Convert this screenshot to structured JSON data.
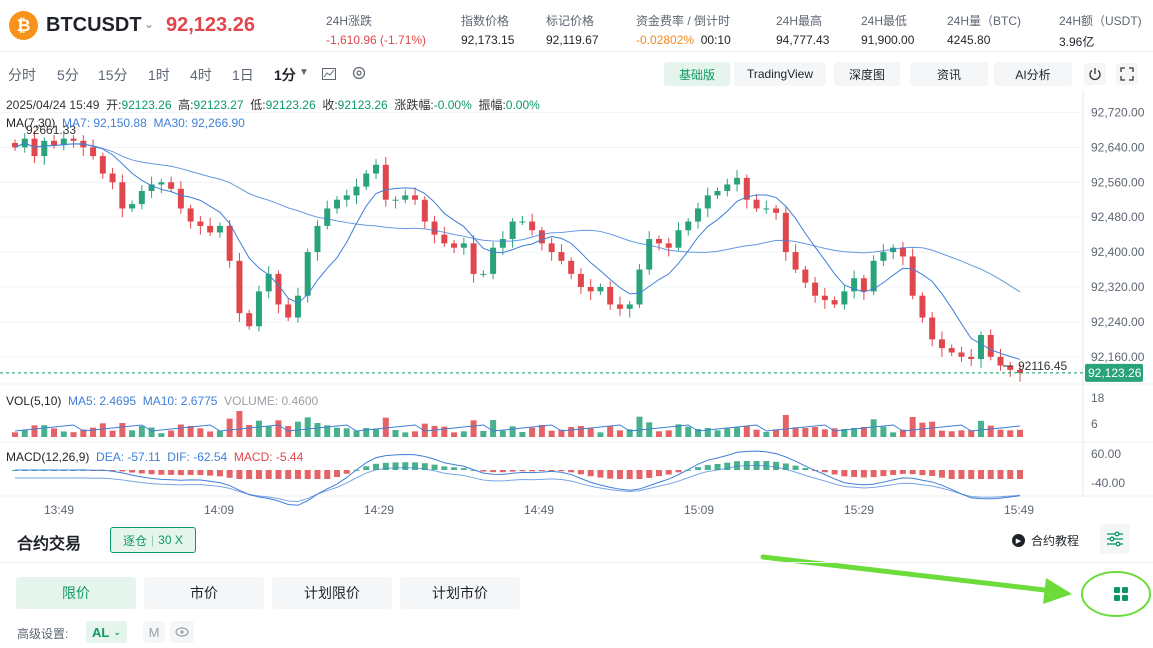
{
  "header": {
    "coin_glyph": "₿",
    "symbol": "BTCUSDT",
    "last_price": "92,123.26",
    "stats": [
      {
        "label": "24H涨跌",
        "value": "-1,610.96 (-1.71%)"
      },
      {
        "label": "指数价格",
        "value": "92,173.15"
      },
      {
        "label": "标记价格",
        "value": "92,119.67"
      },
      {
        "label": "资金费率 / 倒计时",
        "value": "-0.02802%",
        "value2": "00:10"
      },
      {
        "label": "24H最高",
        "value": "94,777.43"
      },
      {
        "label": "24H最低",
        "value": "91,900.00"
      },
      {
        "label": "24H量（BTC)",
        "value": "4245.80"
      },
      {
        "label": "24H额（USDT)",
        "value": "3.96亿"
      }
    ]
  },
  "toolbar": {
    "timeframes": [
      "分时",
      "5分",
      "15分",
      "1时",
      "4时",
      "1日",
      "1分"
    ],
    "active_timeframe": "1分",
    "views": [
      "基础版",
      "TradingView",
      "深度图",
      "资讯",
      "AI分析"
    ],
    "active_view": "基础版"
  },
  "chart_info": {
    "datetime": "2025/04/24 15:49",
    "open_label": "开:",
    "open": "92123.26",
    "high_label": "高:",
    "high": "92123.27",
    "low_label": "低:",
    "low": "92123.26",
    "close_label": "收:",
    "close": "92123.26",
    "chg_label": "涨跌幅:",
    "chg": "-0.00%",
    "amp_label": "振幅:",
    "amp": "0.00%",
    "ma_label": "MA(7,30)",
    "ma7": "MA7: 92,150.88",
    "ma30": "MA30: 92,266.90",
    "high_mark": "92661.33",
    "low_mark": "92116.45",
    "current_price_tag": "92,123.26",
    "vol_label": "VOL(5,10)",
    "ma5": "MA5: 2.4695",
    "ma10": "MA10: 2.6775",
    "volume": "VOLUME: 0.4600",
    "macd_label": "MACD(12,26,9)",
    "dea": "DEA: -57.11",
    "dif": "DIF: -62.54",
    "macd": "MACD: -5.44"
  },
  "chart_data": {
    "type": "candlestick",
    "y_ticks": [
      "92,720.00",
      "92,640.00",
      "92,560.00",
      "92,480.00",
      "92,400.00",
      "92,320.00",
      "92,240.00",
      "92,160.00"
    ],
    "y_range": [
      92100,
      92760
    ],
    "vol_ticks": [
      "18",
      "6"
    ],
    "macd_ticks": [
      "60.00",
      "-40.00"
    ],
    "x_ticks": [
      "13:49",
      "14:09",
      "14:29",
      "14:49",
      "15:09",
      "15:29",
      "15:49"
    ],
    "colors": {
      "up": "#2aa37a",
      "down": "#e0474c",
      "ma7": "#3f7fd8",
      "ma30": "#3f7fd8"
    },
    "close": [
      92640,
      92660,
      92620,
      92655,
      92645,
      92660,
      92655,
      92640,
      92620,
      92580,
      92560,
      92500,
      92510,
      92540,
      92555,
      92560,
      92545,
      92500,
      92470,
      92460,
      92445,
      92460,
      92380,
      92260,
      92230,
      92310,
      92350,
      92280,
      92250,
      92300,
      92400,
      92460,
      92500,
      92520,
      92530,
      92550,
      92580,
      92600,
      92520,
      92520,
      92530,
      92520,
      92470,
      92440,
      92420,
      92410,
      92420,
      92350,
      92350,
      92410,
      92430,
      92470,
      92470,
      92450,
      92420,
      92400,
      92380,
      92350,
      92320,
      92310,
      92320,
      92280,
      92270,
      92280,
      92360,
      92430,
      92420,
      92410,
      92450,
      92470,
      92500,
      92530,
      92540,
      92555,
      92570,
      92520,
      92500,
      92500,
      92490,
      92400,
      92360,
      92330,
      92300,
      92290,
      92280,
      92310,
      92340,
      92310,
      92380,
      92400,
      92410,
      92390,
      92300,
      92250,
      92200,
      92180,
      92170,
      92160,
      92155,
      92210,
      92160,
      92140,
      92130,
      92123
    ]
  },
  "bottom": {
    "trade_title": "合约交易",
    "leverage_mode": "逐仓",
    "leverage_value": "30 X",
    "tutorial": "合约教程",
    "order_tabs": [
      "限价",
      "市价",
      "计划限价",
      "计划市价"
    ],
    "active_order_tab": "限价",
    "advanced_label": "高级设置:",
    "al_label": "AL",
    "m_label": "M"
  }
}
